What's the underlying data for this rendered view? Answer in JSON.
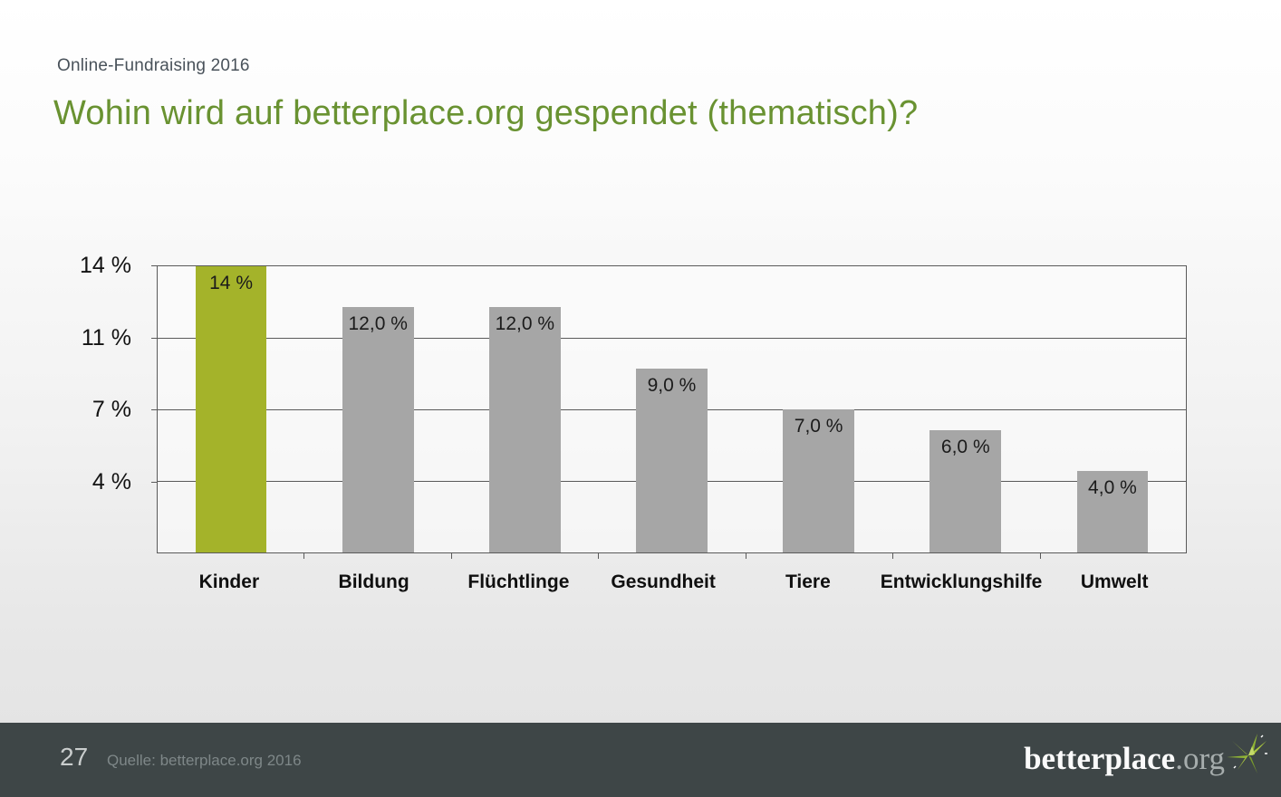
{
  "slide": {
    "eyebrow": "Online-Fundraising 2016",
    "title": "Wohin wird auf betterplace.org gespendet (thematisch)?"
  },
  "chart_data": {
    "type": "bar",
    "categories": [
      "Kinder",
      "Bildung",
      "Flüchtlinge",
      "Gesundheit",
      "Tiere",
      "Entwicklungshilfe",
      "Umwelt"
    ],
    "values": [
      14,
      12,
      12,
      9,
      7,
      6,
      4
    ],
    "bar_labels": [
      "14 %",
      "12,0 %",
      "12,0 %",
      "9,0 %",
      "7,0 %",
      "6,0 %",
      "4,0 %"
    ],
    "title": "",
    "xlabel": "",
    "ylabel": "",
    "ylim": [
      0,
      14
    ],
    "gridline_values": [
      14,
      10.5,
      7,
      3.5
    ],
    "ytick_labels": [
      "14 %",
      "11 %",
      "7 %",
      "4 %"
    ],
    "grid": true,
    "legend": false,
    "highlight_index": 0,
    "highlight_color": "#a4b32a",
    "default_color": "#a6a6a6",
    "axis_color": "#5a5a5a"
  },
  "footer": {
    "page_number": "27",
    "source": "Quelle: betterplace.org 2016",
    "logo_text": "betterplace",
    "logo_suffix": ".org",
    "logo_icon": "pinwheel-leaves"
  },
  "colors": {
    "title_green": "#699231",
    "footer_bg": "#3e4647",
    "eyebrow_gray": "#49525a"
  }
}
